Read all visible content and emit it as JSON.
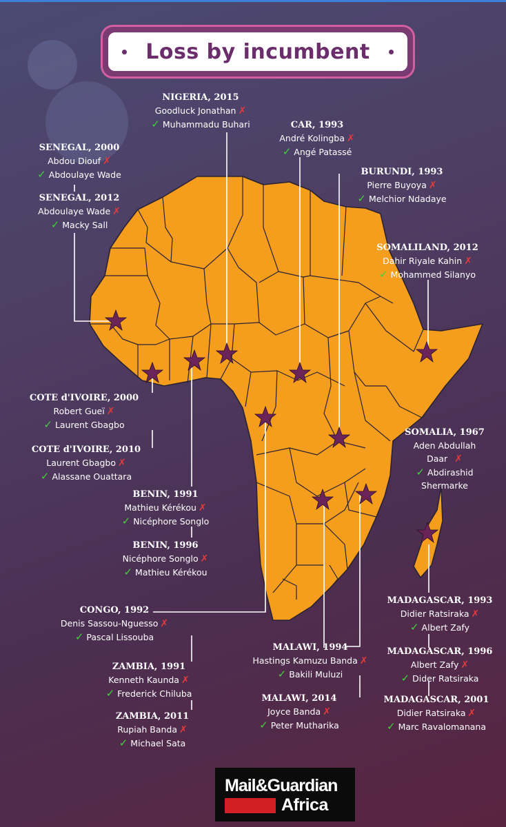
{
  "title": "Loss by incumbent",
  "colors": {
    "land": "#f59d1c",
    "border": "#2a2233",
    "marker": "#6b2457",
    "win": "#41d13a",
    "loss": "#e53b3b"
  },
  "labels": [
    {
      "id": "nigeria-2015",
      "header": "NIGERIA, 2015",
      "loser": "Goodluck Jonathan",
      "winner": "Muhammadu Buhari"
    },
    {
      "id": "car-1993",
      "header": "CAR, 1993",
      "loser": "André Kolingba",
      "winner": "Angé Patassé"
    },
    {
      "id": "senegal-2000",
      "header": "SENEGAL, 2000",
      "loser": "Abdou Diouf",
      "winner": "Abdoulaye Wade"
    },
    {
      "id": "senegal-2012",
      "header": "SENEGAL, 2012",
      "loser": "Abdoulaye Wade",
      "winner": "Macky Sall"
    },
    {
      "id": "burundi-1993",
      "header": "BURUNDI, 1993",
      "loser": "Pierre Buyoya",
      "winner": "Melchior Ndadaye"
    },
    {
      "id": "somaliland-2012",
      "header": "SOMALILAND, 2012",
      "loser": "Dahir Riyale Kahin",
      "winner": "Mohammed Silanyo"
    },
    {
      "id": "cotedivoire-2000",
      "header": "COTE d'IVOIRE, 2000",
      "loser": "Robert Gueï",
      "winner": "Laurent Gbagbo"
    },
    {
      "id": "cotedivoire-2010",
      "header": "COTE d'IVOIRE, 2010",
      "loser": "Laurent Gbagbo",
      "winner": "Alassane Ouattara"
    },
    {
      "id": "somalia-1967",
      "header": "SOMALIA, 1967",
      "loser_line1": "Aden Abdullah",
      "loser_line2": "Daar",
      "winner_line1": "Abdirashid",
      "winner_line2": "Shermarke"
    },
    {
      "id": "benin-1991",
      "header": "BENIN, 1991",
      "loser": "Mathieu Kérékou",
      "winner": "Nicéphore Songlo"
    },
    {
      "id": "benin-1996",
      "header": "BENIN, 1996",
      "loser": "Nicéphore Songlo",
      "winner": "Mathieu Kérékou"
    },
    {
      "id": "congo-1992",
      "header": "CONGO, 1992",
      "loser": "Denis Sassou-Nguesso",
      "winner": "Pascal Lissouba"
    },
    {
      "id": "madagascar-1993",
      "header": "MADAGASCAR, 1993",
      "loser": "Didier Ratsiraka",
      "winner": "Albert Zafy"
    },
    {
      "id": "malawi-1994",
      "header": "MALAWI, 1994",
      "loser": "Hastings Kamuzu Banda",
      "winner": "Bakili Muluzi"
    },
    {
      "id": "madagascar-1996",
      "header": "MADAGASCAR, 1996",
      "loser": "Albert Zafy",
      "winner": "Dider Ratsiraka"
    },
    {
      "id": "zambia-1991",
      "header": "ZAMBIA, 1991",
      "loser": "Kenneth Kaunda",
      "winner": "Frederick Chiluba"
    },
    {
      "id": "malawi-2014",
      "header": "MALAWI, 2014",
      "loser": "Joyce Banda",
      "winner": "Peter Mutharika"
    },
    {
      "id": "madagascar-2001",
      "header": "MADAGASCAR, 2001",
      "loser": "Didier Ratsiraka",
      "winner": "Marc Ravalomanana"
    },
    {
      "id": "zambia-2011",
      "header": "ZAMBIA, 2011",
      "loser": "Rupiah Banda",
      "winner": "Michael Sata"
    }
  ],
  "symbols": {
    "loss": "✗",
    "win": "✓"
  },
  "logo": {
    "line1": "Mail&Guardian",
    "line2": "Africa"
  }
}
